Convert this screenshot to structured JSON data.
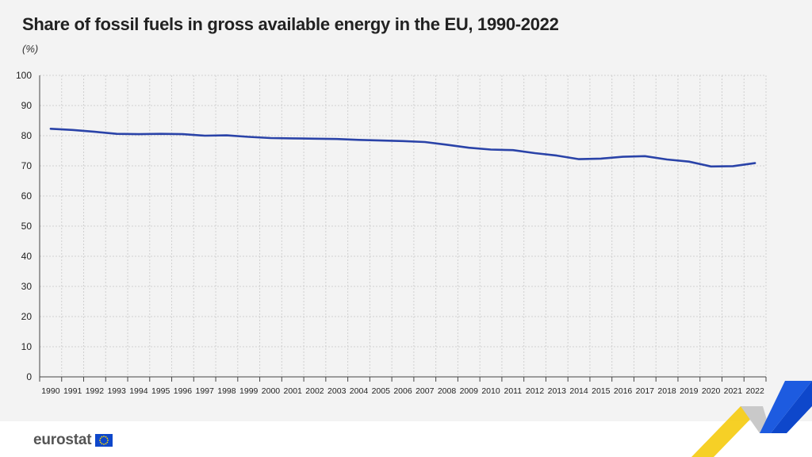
{
  "header": {
    "title": "Share of fossil fuels in gross available energy in the EU, 1990-2022",
    "unit": "(%)"
  },
  "footer": {
    "logo_text": "eurostat"
  },
  "colors": {
    "line": "#2a43a8",
    "background": "#f3f3f3",
    "grid": "#d0d0d0",
    "accent_yellow": "#f5c800",
    "accent_blue": "#0e47cb"
  },
  "chart_data": {
    "type": "line",
    "title": "Share of fossil fuels in gross available energy in the EU, 1990-2022",
    "ylabel": "(%)",
    "xlabel": "",
    "ylim": [
      0,
      100
    ],
    "yticks": [
      0,
      10,
      20,
      30,
      40,
      50,
      60,
      70,
      80,
      90,
      100
    ],
    "grid": true,
    "categories": [
      "1990",
      "1991",
      "1992",
      "1993",
      "1994",
      "1995",
      "1996",
      "1997",
      "1998",
      "1999",
      "2000",
      "2001",
      "2002",
      "2003",
      "2004",
      "2005",
      "2006",
      "2007",
      "2008",
      "2009",
      "2010",
      "2011",
      "2012",
      "2013",
      "2014",
      "2015",
      "2016",
      "2017",
      "2018",
      "2019",
      "2020",
      "2021",
      "2022"
    ],
    "series": [
      {
        "values": [
          82.3,
          81.9,
          81.3,
          80.6,
          80.5,
          80.6,
          80.5,
          80.0,
          80.1,
          79.6,
          79.2,
          79.1,
          79.0,
          78.9,
          78.6,
          78.4,
          78.2,
          77.9,
          77.0,
          76.0,
          75.4,
          75.2,
          74.2,
          73.4,
          72.2,
          72.4,
          73.0,
          73.2,
          72.1,
          71.4,
          69.8,
          69.9,
          70.9
        ]
      }
    ]
  }
}
